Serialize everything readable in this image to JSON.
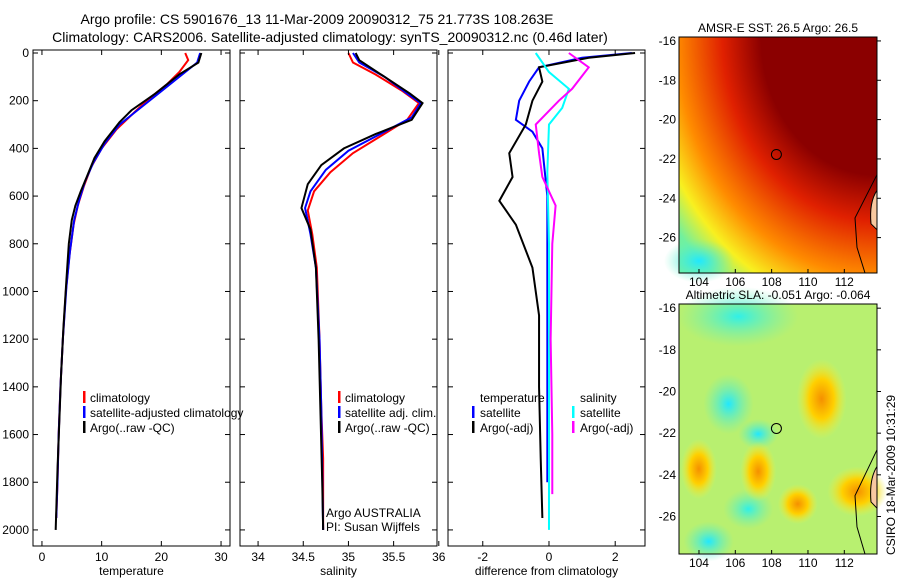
{
  "title_line1": "Argo profile: CS 5901676_13 11-Mar-2009 20090312_75 21.773S 108.263E",
  "title_line2": "Climatology: CARS2006. Satellite-adjusted climatology: synTS_20090312.nc (0.46d later)",
  "footer_stamp": "CSIRO 18-Mar-2009 10:31:29",
  "colors": {
    "climatology": "#ff0000",
    "satellite": "#0000ff",
    "argo": "#000000",
    "sal_satellite": "#00ffff",
    "sal_argo": "#ff00ff"
  },
  "chart_data": [
    {
      "type": "line",
      "xlabel": "temperature",
      "ylabel": "",
      "xlim": [
        -1.5,
        31.5
      ],
      "ylim": [
        0,
        2080
      ],
      "y_reversed": true,
      "xticks": [
        "0",
        "10",
        "20",
        "30"
      ],
      "xtick_values": [
        0,
        10,
        20,
        30
      ],
      "yticks": [
        "0",
        "200",
        "400",
        "600",
        "800",
        "1000",
        "1200",
        "1400",
        "1600",
        "1800",
        "2000"
      ],
      "ytick_values": [
        0,
        200,
        400,
        600,
        800,
        1000,
        1200,
        1400,
        1600,
        1800,
        2000
      ],
      "legend": [
        "climatology",
        "satellite-adjusted climatology",
        "Argo(..raw -QC)"
      ],
      "series": [
        {
          "name": "climatology",
          "color": "#ff0000",
          "points": [
            [
              24,
              0
            ],
            [
              24.5,
              30
            ],
            [
              23,
              80
            ],
            [
              21,
              130
            ],
            [
              18,
              190
            ],
            [
              15,
              260
            ],
            [
              12.5,
              320
            ],
            [
              10,
              400
            ],
            [
              8.2,
              480
            ],
            [
              7,
              560
            ],
            [
              6,
              640
            ],
            [
              5.3,
              720
            ],
            [
              4.6,
              850
            ],
            [
              4,
              1000
            ],
            [
              3.5,
              1200
            ],
            [
              3.1,
              1400
            ],
            [
              2.8,
              1600
            ],
            [
              2.6,
              1800
            ],
            [
              2.4,
              1950
            ]
          ]
        },
        {
          "name": "satellite-adjusted climatology",
          "color": "#0000ff",
          "points": [
            [
              26.5,
              0
            ],
            [
              26,
              40
            ],
            [
              23,
              100
            ],
            [
              19.5,
              170
            ],
            [
              16,
              240
            ],
            [
              13,
              300
            ],
            [
              10.5,
              380
            ],
            [
              8.6,
              460
            ],
            [
              7.2,
              540
            ],
            [
              6.2,
              620
            ],
            [
              5.4,
              700
            ],
            [
              4.7,
              830
            ],
            [
              4.1,
              980
            ],
            [
              3.5,
              1200
            ],
            [
              3.1,
              1400
            ],
            [
              2.8,
              1600
            ],
            [
              2.6,
              1800
            ],
            [
              2.4,
              1950
            ]
          ]
        },
        {
          "name": "Argo(..raw -QC)",
          "color": "#000000",
          "points": [
            [
              26.7,
              0
            ],
            [
              26.2,
              40
            ],
            [
              23,
              90
            ],
            [
              19,
              170
            ],
            [
              15,
              240
            ],
            [
              13,
              290
            ],
            [
              10.5,
              370
            ],
            [
              8.8,
              440
            ],
            [
              7.5,
              520
            ],
            [
              6.5,
              580
            ],
            [
              5.6,
              640
            ],
            [
              5,
              700
            ],
            [
              4.5,
              800
            ],
            [
              4.1,
              950
            ],
            [
              3.6,
              1150
            ],
            [
              3.2,
              1350
            ],
            [
              2.9,
              1550
            ],
            [
              2.6,
              1750
            ],
            [
              2.3,
              2000
            ]
          ]
        }
      ]
    },
    {
      "type": "line",
      "xlabel": "salinity",
      "xlim": [
        33.8,
        35.98
      ],
      "ylim": [
        0,
        2080
      ],
      "y_reversed": true,
      "xticks": [
        "34",
        "34.5",
        "35",
        "35.5",
        "36"
      ],
      "xtick_values": [
        34,
        34.5,
        35,
        35.5,
        36
      ],
      "legend": [
        "climatology",
        "satellite adj. clim.",
        "Argo(..raw -QC)"
      ],
      "annotation": [
        "Argo AUSTRALIA",
        "PI: Susan Wijffels"
      ],
      "series": [
        {
          "name": "climatology",
          "color": "#ff0000",
          "points": [
            [
              35.0,
              0
            ],
            [
              35.05,
              40
            ],
            [
              35.3,
              90
            ],
            [
              35.6,
              160
            ],
            [
              35.78,
              210
            ],
            [
              35.65,
              280
            ],
            [
              35.35,
              350
            ],
            [
              35.05,
              420
            ],
            [
              34.8,
              500
            ],
            [
              34.62,
              580
            ],
            [
              34.55,
              660
            ],
            [
              34.6,
              760
            ],
            [
              34.65,
              900
            ],
            [
              34.68,
              1200
            ],
            [
              34.7,
              1500
            ],
            [
              34.72,
              1700
            ],
            [
              34.72,
              2000
            ]
          ]
        },
        {
          "name": "satellite adj. clim.",
          "color": "#0000ff",
          "points": [
            [
              35.05,
              0
            ],
            [
              35.12,
              40
            ],
            [
              35.4,
              100
            ],
            [
              35.65,
              170
            ],
            [
              35.8,
              210
            ],
            [
              35.7,
              270
            ],
            [
              35.35,
              340
            ],
            [
              35.0,
              410
            ],
            [
              34.75,
              490
            ],
            [
              34.58,
              580
            ],
            [
              34.52,
              650
            ],
            [
              34.58,
              760
            ],
            [
              34.64,
              900
            ],
            [
              34.68,
              1200
            ],
            [
              34.7,
              1500
            ],
            [
              34.72,
              2000
            ]
          ]
        },
        {
          "name": "Argo(..raw -QC)",
          "color": "#000000",
          "points": [
            [
              35.08,
              0
            ],
            [
              35.12,
              30
            ],
            [
              35.4,
              100
            ],
            [
              35.68,
              170
            ],
            [
              35.82,
              210
            ],
            [
              35.7,
              280
            ],
            [
              35.3,
              340
            ],
            [
              34.95,
              400
            ],
            [
              34.7,
              470
            ],
            [
              34.55,
              550
            ],
            [
              34.48,
              650
            ],
            [
              34.58,
              740
            ],
            [
              34.64,
              900
            ],
            [
              34.67,
              1200
            ],
            [
              34.69,
              1500
            ],
            [
              34.71,
              1800
            ],
            [
              34.72,
              2000
            ]
          ]
        }
      ]
    },
    {
      "type": "line",
      "xlabel": "difference from climatology",
      "xlim": [
        -3.05,
        2.9
      ],
      "ylim": [
        0,
        2080
      ],
      "y_reversed": true,
      "xticks": [
        "-2",
        "0",
        "2"
      ],
      "xtick_values": [
        -2,
        0,
        2
      ],
      "legend_temperature": {
        "heading": "temperature",
        "items": [
          "satellite",
          "Argo(-adj)"
        ]
      },
      "legend_salinity": {
        "heading": "salinity",
        "items": [
          "satellite",
          "Argo(-adj)"
        ]
      },
      "series": [
        {
          "name": "temperature satellite",
          "color": "#0000ff",
          "points": [
            [
              2.5,
              0
            ],
            [
              1,
              20
            ],
            [
              -0.3,
              60
            ],
            [
              -0.6,
              120
            ],
            [
              -0.9,
              200
            ],
            [
              -1,
              280
            ],
            [
              -0.5,
              330
            ],
            [
              -0.2,
              400
            ],
            [
              -0.05,
              600
            ],
            [
              -0.05,
              1000
            ],
            [
              -0.05,
              1500
            ],
            [
              -0.05,
              1800
            ]
          ]
        },
        {
          "name": "temperature Argo(-adj)",
          "color": "#000000",
          "points": [
            [
              2.6,
              0
            ],
            [
              1.2,
              20
            ],
            [
              -0.3,
              60
            ],
            [
              -0.2,
              120
            ],
            [
              -0.5,
              200
            ],
            [
              -0.7,
              300
            ],
            [
              -1.2,
              420
            ],
            [
              -1.1,
              520
            ],
            [
              -1.5,
              620
            ],
            [
              -1,
              720
            ],
            [
              -0.5,
              900
            ],
            [
              -0.3,
              1100
            ],
            [
              -0.3,
              1400
            ],
            [
              -0.25,
              1700
            ],
            [
              -0.2,
              1950
            ]
          ]
        },
        {
          "name": "salinity satellite",
          "color": "#00ffff",
          "points": [
            [
              -0.4,
              0
            ],
            [
              0,
              80
            ],
            [
              0.6,
              150
            ],
            [
              0.4,
              230
            ],
            [
              0,
              300
            ],
            [
              -0.05,
              500
            ],
            [
              0,
              800
            ],
            [
              0,
              1200
            ],
            [
              0,
              1600
            ],
            [
              0,
              2000
            ]
          ]
        },
        {
          "name": "salinity Argo(-adj)",
          "color": "#ff00ff",
          "points": [
            [
              0.6,
              0
            ],
            [
              1.2,
              60
            ],
            [
              0.7,
              150
            ],
            [
              0.3,
              200
            ],
            [
              -0.4,
              300
            ],
            [
              -0.3,
              420
            ],
            [
              -0.2,
              520
            ],
            [
              0.2,
              640
            ],
            [
              0.1,
              800
            ],
            [
              0.05,
              1200
            ],
            [
              0.1,
              1600
            ],
            [
              0.1,
              1850
            ]
          ]
        }
      ]
    },
    {
      "type": "heatmap",
      "title": "AMSR-E SST: 26.5 Argo: 26.5",
      "xlim": [
        102.9,
        113.8
      ],
      "ylim": [
        -27.8,
        -15.8
      ],
      "xticks": [
        "104",
        "106",
        "108",
        "110",
        "112"
      ],
      "xtick_values": [
        104,
        106,
        108,
        110,
        112
      ],
      "yticks": [
        "-16",
        "-18",
        "-20",
        "-22",
        "-24",
        "-26"
      ],
      "ytick_values": [
        -16,
        -18,
        -20,
        -22,
        -24,
        -26
      ],
      "marker": [
        108.263,
        -21.773
      ]
    },
    {
      "type": "heatmap",
      "title": "Altimetric SLA: -0.051 Argo: -0.064",
      "xlim": [
        102.9,
        113.8
      ],
      "ylim": [
        -27.8,
        -15.8
      ],
      "xticks": [
        "104",
        "106",
        "108",
        "110",
        "112"
      ],
      "xtick_values": [
        104,
        106,
        108,
        110,
        112
      ],
      "yticks": [
        "-16",
        "-18",
        "-20",
        "-22",
        "-24",
        "-26"
      ],
      "ytick_values": [
        -16,
        -18,
        -20,
        -22,
        -24,
        -26
      ],
      "marker": [
        108.263,
        -21.773
      ]
    }
  ]
}
